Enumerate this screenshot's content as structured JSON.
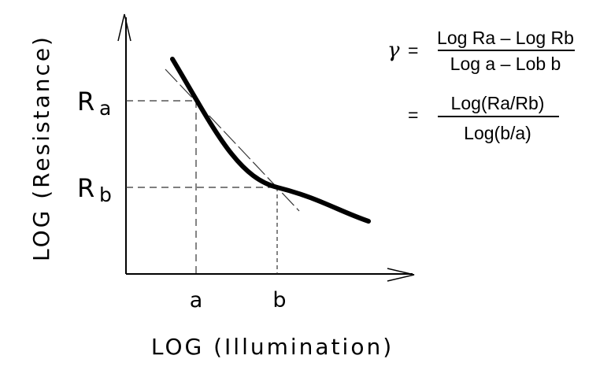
{
  "axes": {
    "y_title": "LOG (Resistance)",
    "x_title": "LOG (Illumination)"
  },
  "y_labels": {
    "a_main": "R",
    "a_sub": "a",
    "b_main": "R",
    "b_sub": "b"
  },
  "x_labels": {
    "a": "a",
    "b": "b"
  },
  "formula": {
    "symbol": "γ",
    "equals1": "=",
    "line1_numerator": "Log Ra – Log Rb",
    "line1_denominator": "Log a – Lob b",
    "equals2": "=",
    "line2_numerator": "Log(Ra/Rb)",
    "line2_denominator": "Log(b/a)"
  },
  "colors": {
    "line": "#000000",
    "dashed": "#333333"
  }
}
